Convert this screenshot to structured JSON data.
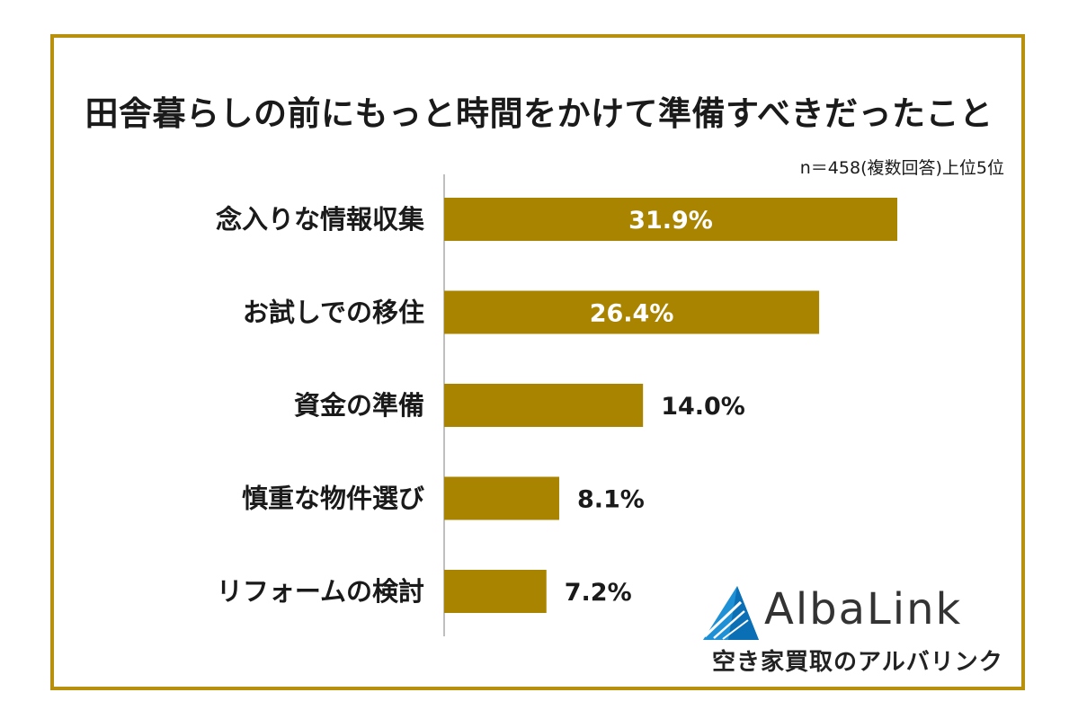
{
  "title": "田舎暮らしの前にもっと時間をかけて準備すべきだったこと",
  "note": "n＝458(複数回答)上位5位",
  "logo": {
    "name": "AlbaLink",
    "tagline": "空き家買取のアルバリンク",
    "icon": "triangle-logo-icon"
  },
  "colors": {
    "bar": "#a98400",
    "frame": "#b8900e",
    "axis": "#bfbfbf",
    "inside_label": "#ffffff",
    "outside_label": "#1a1a1a"
  },
  "chart_data": {
    "type": "bar",
    "orientation": "horizontal",
    "categories": [
      "念入りな情報収集",
      "お試しでの移住",
      "資金の準備",
      "慎重な物件選び",
      "リフォームの検討"
    ],
    "values": [
      31.9,
      26.4,
      14.0,
      8.1,
      7.2
    ],
    "value_labels": [
      "31.9%",
      "26.4%",
      "14.0%",
      "8.1%",
      "7.2%"
    ],
    "unit": "%",
    "xlim": [
      0,
      35
    ],
    "grid": false,
    "legend": "none"
  }
}
